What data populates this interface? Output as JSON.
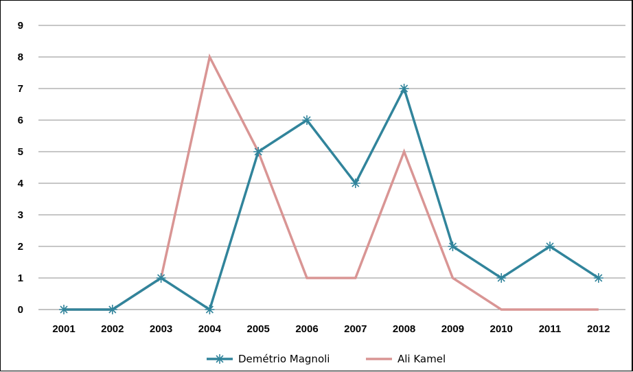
{
  "chart_data": {
    "type": "line",
    "title": "",
    "xlabel": "",
    "ylabel": "",
    "categories": [
      "2001",
      "2002",
      "2003",
      "2004",
      "2005",
      "2006",
      "2007",
      "2008",
      "2009",
      "2010",
      "2011",
      "2012"
    ],
    "ylim": [
      0,
      9
    ],
    "yticks": [
      0,
      1,
      2,
      3,
      4,
      5,
      6,
      7,
      8,
      9
    ],
    "grid": true,
    "legend_position": "bottom",
    "series": [
      {
        "name": "Demétrio Magnoli",
        "color": "#31849b",
        "marker": "asterisk",
        "values": [
          0,
          0,
          1,
          0,
          5,
          6,
          4,
          7,
          2,
          1,
          2,
          1
        ]
      },
      {
        "name": "Ali Kamel",
        "color": "#d99594",
        "marker": "none",
        "values": [
          0,
          0,
          1,
          8,
          5,
          1,
          1,
          5,
          1,
          0,
          0,
          0
        ]
      }
    ]
  }
}
